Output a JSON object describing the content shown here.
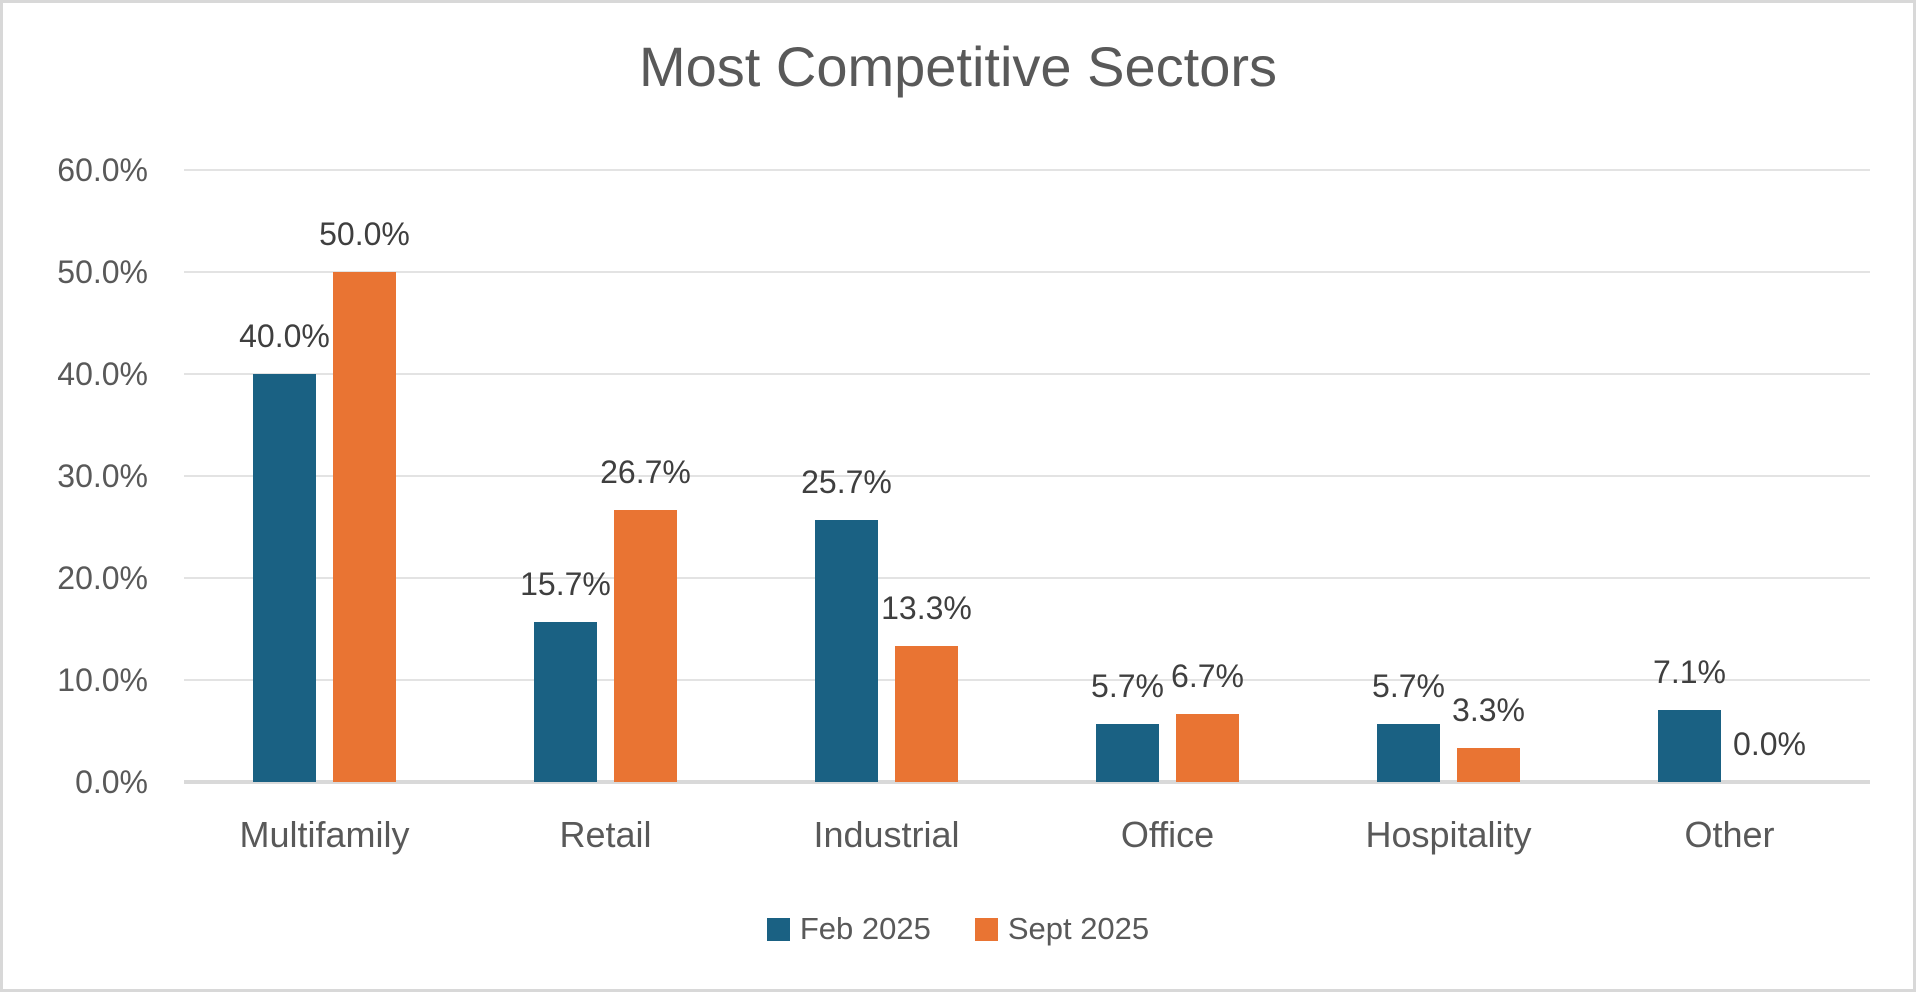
{
  "chart_data": {
    "type": "bar",
    "title": "Most Competitive Sectors",
    "categories": [
      "Multifamily",
      "Retail",
      "Industrial",
      "Office",
      "Hospitality",
      "Other"
    ],
    "series": [
      {
        "name": "Feb 2025",
        "color": "#1a6183",
        "values": [
          40.0,
          15.7,
          25.7,
          5.7,
          5.7,
          7.1
        ],
        "labels": [
          "40.0%",
          "15.7%",
          "25.7%",
          "5.7%",
          "5.7%",
          "7.1%"
        ]
      },
      {
        "name": "Sept 2025",
        "color": "#e97433",
        "values": [
          50.0,
          26.7,
          13.3,
          6.7,
          3.3,
          0.0
        ],
        "labels": [
          "50.0%",
          "26.7%",
          "13.3%",
          "6.7%",
          "3.3%",
          "0.0%"
        ]
      }
    ],
    "y_axis": {
      "min": 0,
      "max": 60,
      "tick_step": 10,
      "tick_labels": [
        "0.0%",
        "10.0%",
        "20.0%",
        "30.0%",
        "40.0%",
        "50.0%",
        "60.0%"
      ]
    },
    "grid": true,
    "data_labels": true,
    "legend_position": "bottom"
  },
  "colors": {
    "axis_text": "#595959",
    "category_text": "#595959",
    "data_label_text": "#3f3f3f",
    "title_text": "#595959",
    "gridline": "#e3e3e3",
    "baseline": "#d9d9d9",
    "frame_border": "#d8d8d8",
    "background": "#ffffff"
  }
}
